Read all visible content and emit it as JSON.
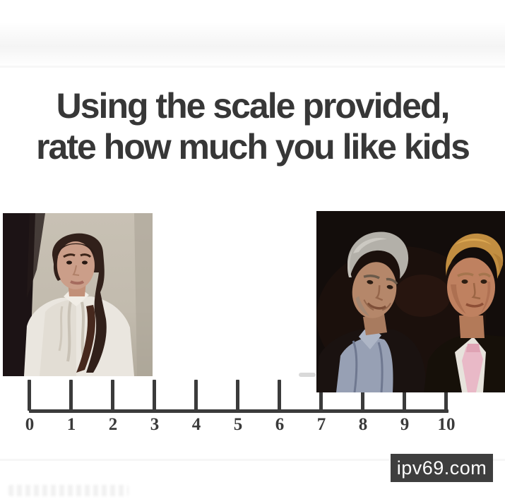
{
  "meme": {
    "title_line1": "Using the scale provided,",
    "title_line2": "rate how much you like kids"
  },
  "scale": {
    "type": "number-line",
    "min": 0,
    "max": 10,
    "tick_labels": [
      "0",
      "1",
      "2",
      "3",
      "4",
      "5",
      "6",
      "7",
      "8",
      "9",
      "10"
    ],
    "line_color": "#3b3b3b"
  },
  "images": {
    "left_photo": {
      "description": "woman with dark pulled-back hair in white ruffled blouse, courtroom photo over scale position 0-3"
    },
    "right_photo": {
      "description": "two men, gray-haired man in blue collared shirt and blond man in dark suit with pink tie, dark party photo over scale position 7-10"
    }
  },
  "watermark": {
    "text": "ipv69.com",
    "bg_color": "#3e3e3e",
    "text_color": "#ffffff"
  },
  "colors": {
    "background": "#ffffff",
    "title_text": "#373737",
    "scale_ink": "#3b3b3b"
  }
}
